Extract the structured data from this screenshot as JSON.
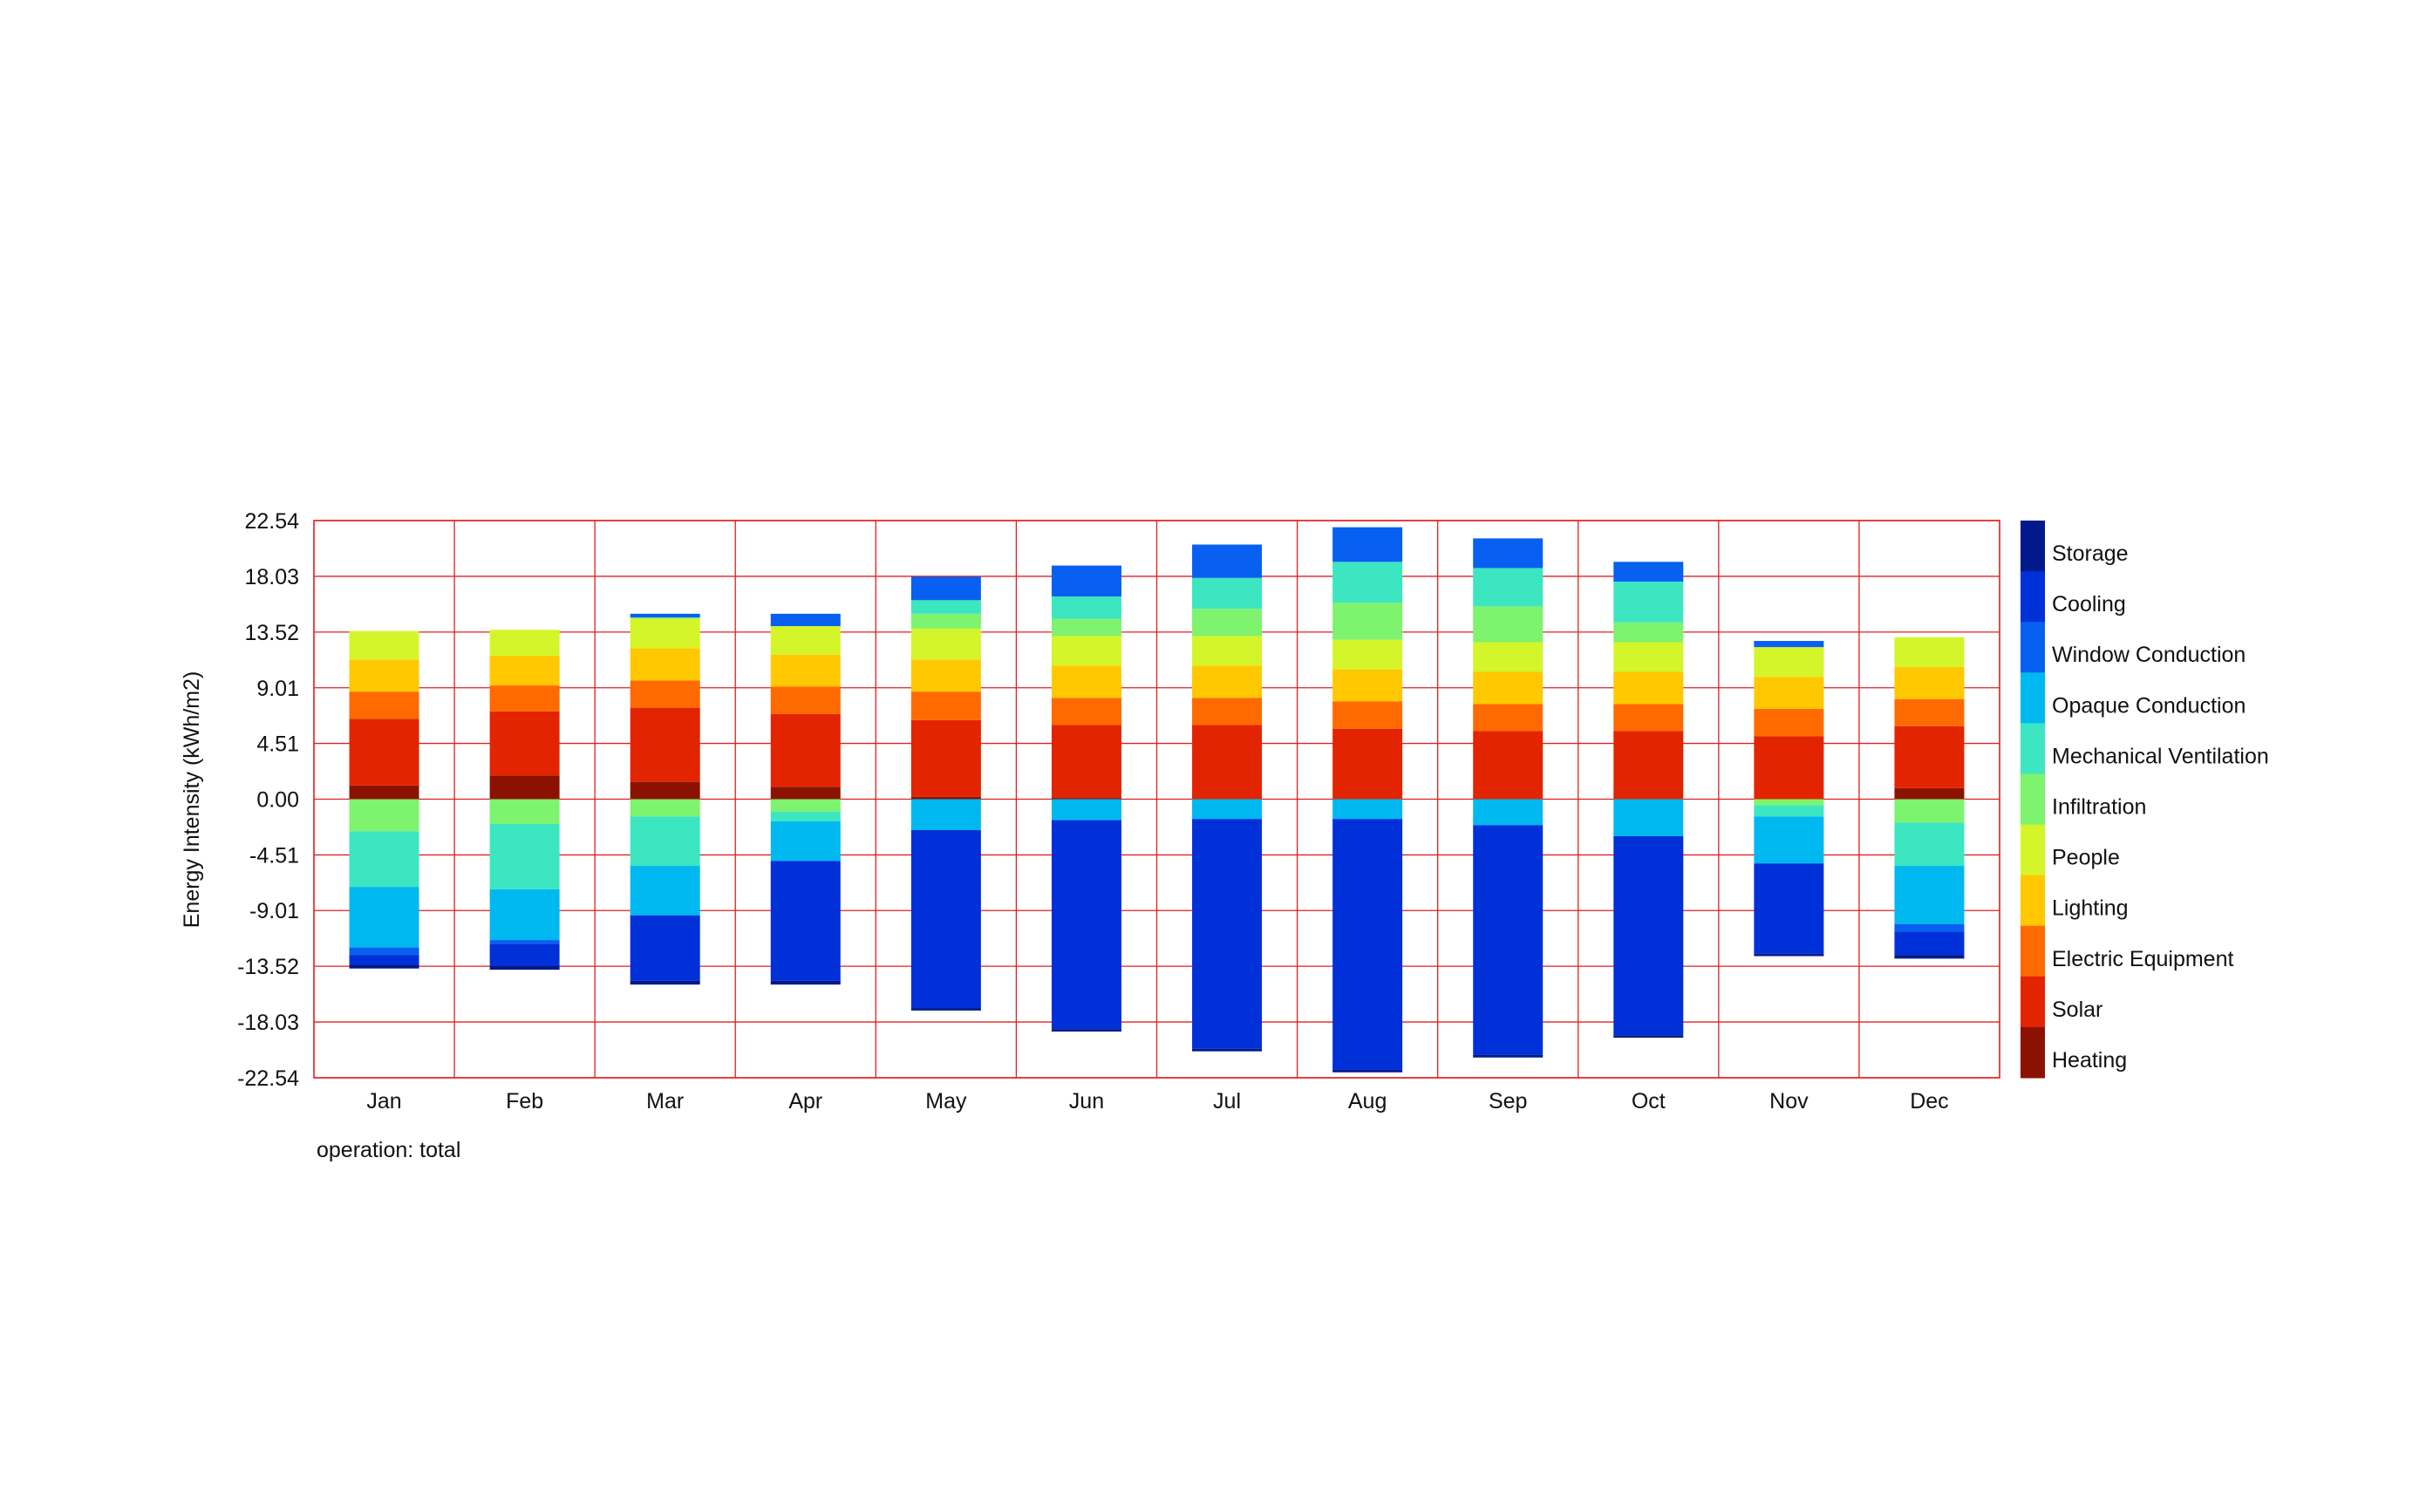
{
  "chart_data": {
    "type": "bar",
    "stacked": true,
    "ylabel": "Energy Intensity (kWh/m2)",
    "xlabel": "",
    "footer": "operation: total",
    "ylim": [
      -22.54,
      22.54
    ],
    "yticks": [
      22.54,
      18.03,
      13.52,
      9.01,
      4.51,
      0.0,
      -4.51,
      -9.01,
      -13.52,
      -18.03,
      -22.54
    ],
    "ytick_labels": [
      "22.54",
      "18.03",
      "13.52",
      "9.01",
      "4.51",
      "0.00",
      "-4.51",
      "-9.01",
      "-13.52",
      "-18.03",
      "-22.54"
    ],
    "grid": true,
    "grid_color": "#e02020",
    "legend_placement": "right",
    "categories": [
      "Jan",
      "Feb",
      "Mar",
      "Apr",
      "May",
      "Jun",
      "Jul",
      "Aug",
      "Sep",
      "Oct",
      "Nov",
      "Dec"
    ],
    "series": [
      {
        "name": "Heating",
        "color": "#8b1200",
        "values": [
          1.1,
          1.9,
          1.4,
          1.0,
          0.2,
          0.1,
          0,
          0,
          0,
          0,
          0,
          0.9
        ]
      },
      {
        "name": "Solar",
        "color": "#e32400",
        "values": [
          5.4,
          5.2,
          6.0,
          5.9,
          6.2,
          5.9,
          6.0,
          5.7,
          5.5,
          5.5,
          5.1,
          5.0
        ]
      },
      {
        "name": "Electric Equipment",
        "color": "#ff6a00",
        "values": [
          2.2,
          2.1,
          2.2,
          2.2,
          2.3,
          2.2,
          2.2,
          2.2,
          2.2,
          2.2,
          2.2,
          2.2
        ]
      },
      {
        "name": "Lighting",
        "color": "#ffc800",
        "values": [
          2.6,
          2.4,
          2.6,
          2.6,
          2.6,
          2.6,
          2.6,
          2.6,
          2.6,
          2.6,
          2.6,
          2.6
        ]
      },
      {
        "name": "People",
        "color": "#d4f52a",
        "values": [
          2.3,
          2.1,
          2.4,
          2.3,
          2.5,
          2.4,
          2.4,
          2.4,
          2.4,
          2.4,
          2.4,
          2.4
        ]
      },
      {
        "name": "Infiltration",
        "color": "#7ef36e",
        "values": [
          0,
          0,
          0.1,
          0,
          1.2,
          1.4,
          2.2,
          3.0,
          2.9,
          1.6,
          0,
          0
        ]
      },
      {
        "name": "Mechanical Ventilation",
        "color": "#3ce6c0",
        "values": [
          0,
          0,
          0,
          0,
          1.1,
          1.8,
          2.5,
          3.3,
          3.1,
          3.3,
          0,
          0
        ]
      },
      {
        "name": "Opaque Conduction",
        "color": "#00b8f0",
        "values": [
          0,
          0,
          0,
          0,
          0,
          0,
          0,
          0,
          0,
          0,
          0,
          0
        ]
      },
      {
        "name": "Window Conduction",
        "color": "#0860f0",
        "values": [
          0,
          0,
          0.3,
          1.0,
          1.9,
          2.5,
          2.7,
          2.8,
          2.4,
          1.6,
          0.5,
          0
        ]
      },
      {
        "name": "Cooling",
        "color": "#0030d8",
        "values": [
          0,
          0,
          0,
          0,
          0,
          0,
          0,
          0,
          0,
          0,
          0,
          0
        ]
      },
      {
        "name": "Storage",
        "color": "#001a8c",
        "values": [
          0,
          0,
          0,
          0,
          0,
          0,
          0,
          0,
          0,
          0,
          0,
          0
        ]
      }
    ],
    "negative_series": [
      {
        "name": "Infiltration",
        "color": "#7ef36e",
        "values": [
          -2.6,
          -2.0,
          -1.4,
          -1.0,
          0,
          0,
          0,
          0,
          0,
          0,
          -0.5,
          -1.9
        ]
      },
      {
        "name": "Mechanical Ventilation",
        "color": "#3ce6c0",
        "values": [
          -4.5,
          -5.3,
          -4.0,
          -0.8,
          0,
          0,
          0,
          0,
          0,
          0,
          -0.9,
          -3.5
        ]
      },
      {
        "name": "Opaque Conduction",
        "color": "#00b8f0",
        "values": [
          -4.9,
          -4.1,
          -4.0,
          -3.2,
          -2.5,
          -1.7,
          -1.6,
          -1.6,
          -2.1,
          -3.0,
          -3.8,
          -4.7
        ]
      },
      {
        "name": "Window Conduction",
        "color": "#0860f0",
        "values": [
          -0.6,
          -0.3,
          0,
          0,
          0,
          0,
          0,
          0,
          0,
          0,
          0,
          -0.6
        ]
      },
      {
        "name": "Cooling",
        "color": "#0030d8",
        "values": [
          -0.8,
          -1.8,
          -5.3,
          -9.7,
          -14.4,
          -16.9,
          -18.6,
          -20.3,
          -18.6,
          -16.1,
          -7.3,
          -1.9
        ]
      },
      {
        "name": "Storage",
        "color": "#001a8c",
        "values": [
          -0.3,
          -0.3,
          -0.3,
          -0.3,
          -0.2,
          -0.2,
          -0.2,
          -0.2,
          -0.2,
          -0.2,
          -0.2,
          -0.3
        ]
      }
    ],
    "legend": [
      {
        "name": "Storage",
        "color": "#001a8c"
      },
      {
        "name": "Cooling",
        "color": "#0030d8"
      },
      {
        "name": "Window Conduction",
        "color": "#0860f0"
      },
      {
        "name": "Opaque Conduction",
        "color": "#00b8f0"
      },
      {
        "name": "Mechanical Ventilation",
        "color": "#3ce6c0"
      },
      {
        "name": "Infiltration",
        "color": "#7ef36e"
      },
      {
        "name": "People",
        "color": "#d4f52a"
      },
      {
        "name": "Lighting",
        "color": "#ffc800"
      },
      {
        "name": "Electric Equipment",
        "color": "#ff6a00"
      },
      {
        "name": "Solar",
        "color": "#e32400"
      },
      {
        "name": "Heating",
        "color": "#8b1200"
      }
    ]
  }
}
